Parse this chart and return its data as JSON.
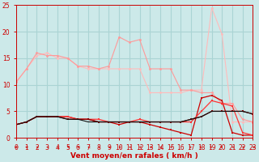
{
  "x": [
    0,
    1,
    2,
    3,
    4,
    5,
    6,
    7,
    8,
    9,
    10,
    11,
    12,
    13,
    14,
    15,
    16,
    17,
    18,
    19,
    20,
    21,
    22,
    23
  ],
  "line1": [
    10.5,
    13,
    15.5,
    16,
    15,
    15,
    13.5,
    13,
    13,
    13,
    13,
    13,
    13,
    8.5,
    8.5,
    8.5,
    8.5,
    9,
    9,
    24.5,
    19.5,
    3,
    3,
    3
  ],
  "line2": [
    10.5,
    13,
    16,
    15.5,
    15.5,
    15,
    13.5,
    13.5,
    13,
    13.5,
    19,
    18,
    18.5,
    13,
    13,
    13,
    9,
    9,
    8.5,
    8.5,
    6.5,
    6.5,
    3.5,
    3
  ],
  "line3": [
    2.5,
    3,
    4,
    4,
    4,
    4,
    3.5,
    3.5,
    3,
    3,
    2.5,
    3,
    3,
    2.5,
    2,
    1.5,
    1,
    0.5,
    7.5,
    8,
    7,
    1,
    0.5,
    0.5
  ],
  "line4": [
    2.5,
    3,
    4,
    4,
    4,
    4,
    3.5,
    3.5,
    3.5,
    3,
    3,
    3,
    3.5,
    3,
    3,
    3,
    3,
    3,
    5,
    7,
    6.5,
    6,
    1,
    0.5
  ],
  "line5": [
    2.5,
    3,
    4,
    4,
    4,
    3.5,
    3.5,
    3.5,
    3,
    3,
    3,
    3,
    3,
    3,
    3,
    3,
    3,
    3.5,
    4,
    5,
    5,
    5,
    5,
    4.5
  ],
  "line6": [
    2.5,
    3,
    4,
    4,
    4,
    3.5,
    3.5,
    3,
    3,
    3,
    3,
    3,
    3,
    3,
    3,
    3,
    3,
    3.5,
    4,
    5,
    5,
    5,
    5,
    4.5
  ],
  "bg_color": "#cce9e9",
  "grid_color": "#aad4d4",
  "line1_color": "#ffbbbb",
  "line2_color": "#ff9999",
  "line3_color": "#cc0000",
  "line4_color": "#ff3333",
  "line5_color": "#880000",
  "line6_color": "#111111",
  "xlabel": "Vent moyen/en rafales ( km/h )",
  "xlim": [
    0,
    23
  ],
  "ylim": [
    0,
    25
  ],
  "yticks": [
    0,
    5,
    10,
    15,
    20,
    25
  ],
  "xticks": [
    0,
    1,
    2,
    3,
    4,
    5,
    6,
    7,
    8,
    9,
    10,
    11,
    12,
    13,
    14,
    15,
    16,
    17,
    18,
    19,
    20,
    21,
    22,
    23
  ]
}
